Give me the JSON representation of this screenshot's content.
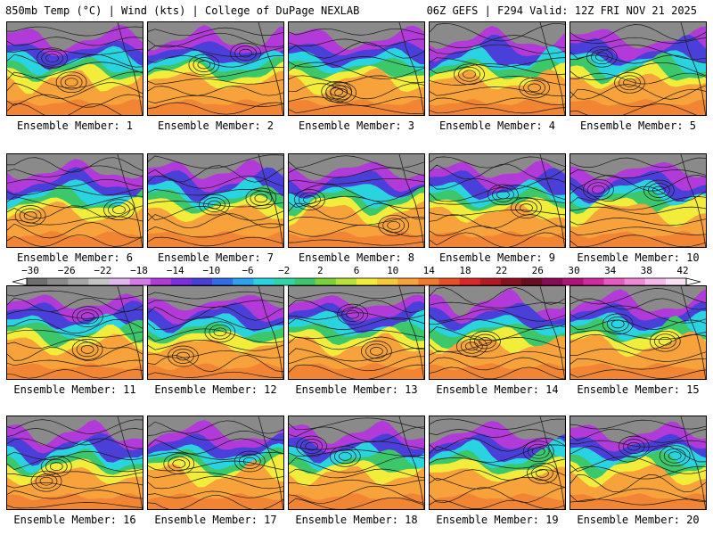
{
  "header": {
    "left": "850mb Temp (°C) | Wind (kts) | College of DuPage NEXLAB",
    "right": "06Z GEFS | F294 Valid: 12Z FRI NOV 21 2025"
  },
  "panel_label_prefix": "Ensemble Member:",
  "members": [
    "1",
    "2",
    "3",
    "4",
    "5",
    "6",
    "7",
    "8",
    "9",
    "10",
    "11",
    "12",
    "13",
    "14",
    "15",
    "16",
    "17",
    "18",
    "19",
    "20"
  ],
  "colorbar": {
    "labels": [
      "-30",
      "-26",
      "-22",
      "-18",
      "-14",
      "-10",
      "-6",
      "-2",
      "2",
      "6",
      "10",
      "14",
      "18",
      "22",
      "26",
      "30",
      "34",
      "38",
      "42"
    ],
    "colors": [
      "#6e6e6e",
      "#8a8a8a",
      "#a5a5a5",
      "#c4c4c4",
      "#e2b6f2",
      "#d67ae8",
      "#b23ad9",
      "#7a2ee0",
      "#4b3fd9",
      "#2f6de6",
      "#2aa3f0",
      "#29d3e0",
      "#2fd4a8",
      "#3cc86a",
      "#7ad23a",
      "#b8e03a",
      "#f2ec3a",
      "#f7c83a",
      "#f7a23a",
      "#f27a2a",
      "#e8502a",
      "#d9282a",
      "#b31a22",
      "#8a1020",
      "#6a0c22",
      "#8a0a5a",
      "#b0147a",
      "#d32aa0",
      "#e85ac0",
      "#f08ad8",
      "#f6b8ea",
      "#fae0f4"
    ]
  },
  "colors": {
    "cold_gray": "#8a8a8a",
    "purple": "#b23ad9",
    "blue": "#4b3fd9",
    "cyan": "#29d3e0",
    "green": "#3cc86a",
    "yellow": "#f2ec3a",
    "orange": "#f7a23a",
    "red": "#e8502a"
  }
}
